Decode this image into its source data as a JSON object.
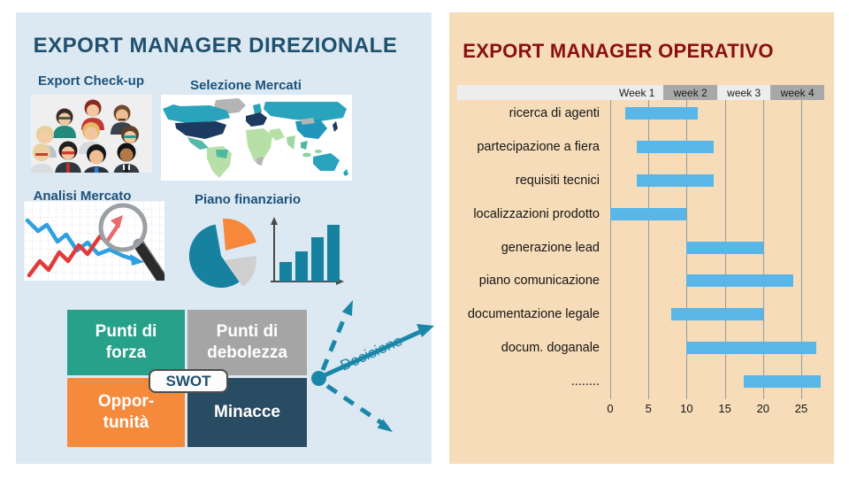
{
  "left_panel": {
    "title": "EXPORT MANAGER DIREZIONALE",
    "bg": "#dce8f2",
    "title_color": "#1f516f",
    "sections": {
      "export_checkup": "Export Check-up",
      "selezione_mercati": "Selezione Mercati",
      "analisi_mercato": "Analisi Mercato",
      "piano_finanziario": "Piano finanziario"
    },
    "swot": {
      "tag": "SWOT",
      "quadrants": [
        {
          "name": "swot-strengths",
          "label": "Punti di\nforza",
          "color": "#27a189"
        },
        {
          "name": "swot-weaknesses",
          "label": "Punti di\ndebolezza",
          "color": "#a5a5a5"
        },
        {
          "name": "swot-opportunities",
          "label": "Oppor-\ntunità",
          "color": "#f68a3c"
        },
        {
          "name": "swot-threats",
          "label": "Minacce",
          "color": "#2a4c63"
        }
      ]
    },
    "decision_label": "Decisione",
    "accent": "#1b87a8"
  },
  "right_panel": {
    "title": "EXPORT MANAGER OPERATIVO",
    "bg": "#f6dcb9",
    "title_color": "#8a100f"
  },
  "chart_data": {
    "type": "bar",
    "subtype": "gantt",
    "title": "EXPORT MANAGER OPERATIVO",
    "week_headers": [
      "Week 1",
      "week 2",
      "week 3",
      "week 4"
    ],
    "week_length_units": 7,
    "tasks": [
      {
        "label": "ricerca di agenti",
        "start": 2,
        "end": 11.5
      },
      {
        "label": "partecipazione a fiera",
        "start": 3.5,
        "end": 13.5
      },
      {
        "label": "requisiti tecnici",
        "start": 3.5,
        "end": 13.5
      },
      {
        "label": "localizzazioni prodotto",
        "start": 0,
        "end": 10
      },
      {
        "label": "generazione lead",
        "start": 10,
        "end": 20
      },
      {
        "label": "piano comunicazione",
        "start": 10,
        "end": 24
      },
      {
        "label": "documentazione legale",
        "start": 8,
        "end": 20
      },
      {
        "label": "docum. doganale",
        "start": 10,
        "end": 27
      },
      {
        "label": "........",
        "start": 17.5,
        "end": 27.5
      }
    ],
    "x_ticks": [
      0,
      5,
      10,
      15,
      20,
      25
    ],
    "xlim": [
      0,
      28
    ],
    "xlabel": "",
    "ylabel": "",
    "grid": true,
    "bar_color": "#58b7e8",
    "header_dark_color": "#a8a8a8",
    "header_light_color": "#ededed"
  }
}
